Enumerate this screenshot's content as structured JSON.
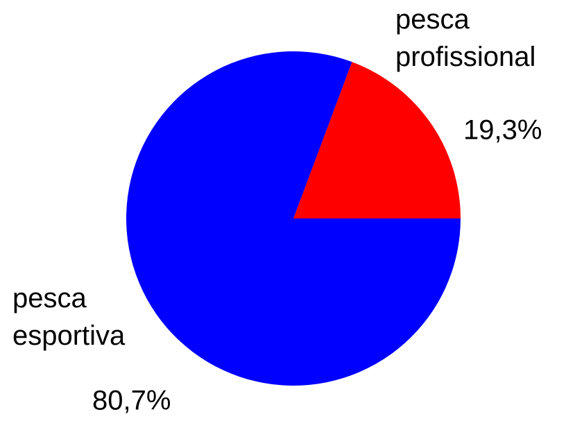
{
  "chart_data": {
    "type": "pie",
    "categories": [
      "pesca profissional",
      "pesca esportiva"
    ],
    "values": [
      19.3,
      80.7
    ],
    "value_labels": [
      "19,3%",
      "80,7%"
    ],
    "colors": [
      "#ff0000",
      "#0000ff"
    ]
  }
}
